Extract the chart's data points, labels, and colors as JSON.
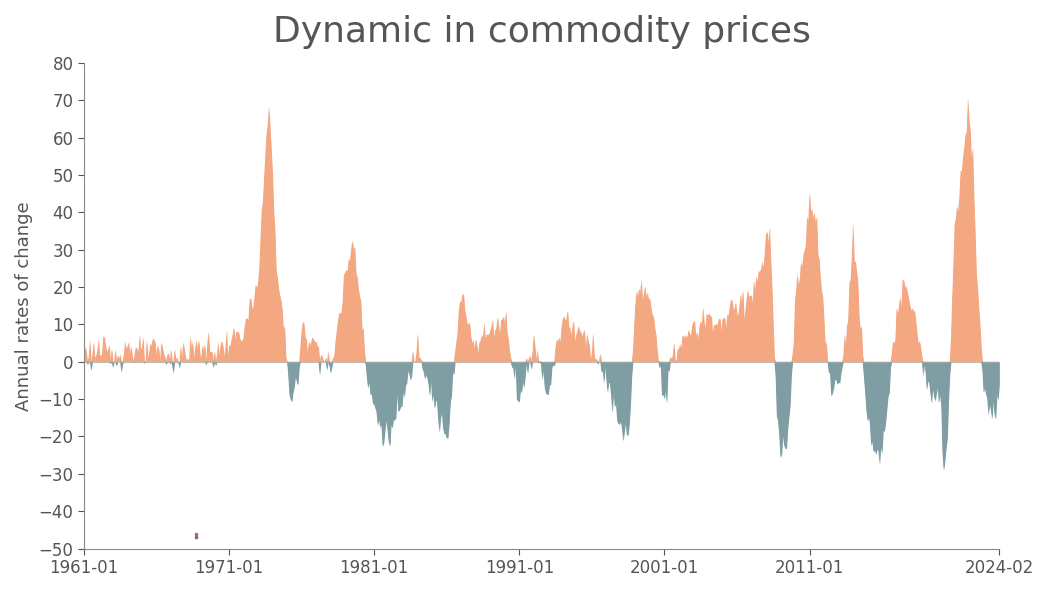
{
  "title": "Dynamic in commodity prices",
  "ylabel": "Annual rates of change",
  "xlabel": "",
  "color_positive": "#F4A882",
  "color_negative": "#7F9EA3",
  "background_color": "#ffffff",
  "ylim": [
    -50,
    80
  ],
  "yticks": [
    -50,
    -40,
    -30,
    -20,
    -10,
    0,
    10,
    20,
    30,
    40,
    50,
    60,
    70,
    80
  ],
  "xtick_labels": [
    "1961-01",
    "1971-01",
    "1981-01",
    "1991-01",
    "2001-01",
    "2011-01",
    "2024-02"
  ],
  "title_fontsize": 26,
  "axis_fontsize": 13,
  "tick_fontsize": 12
}
